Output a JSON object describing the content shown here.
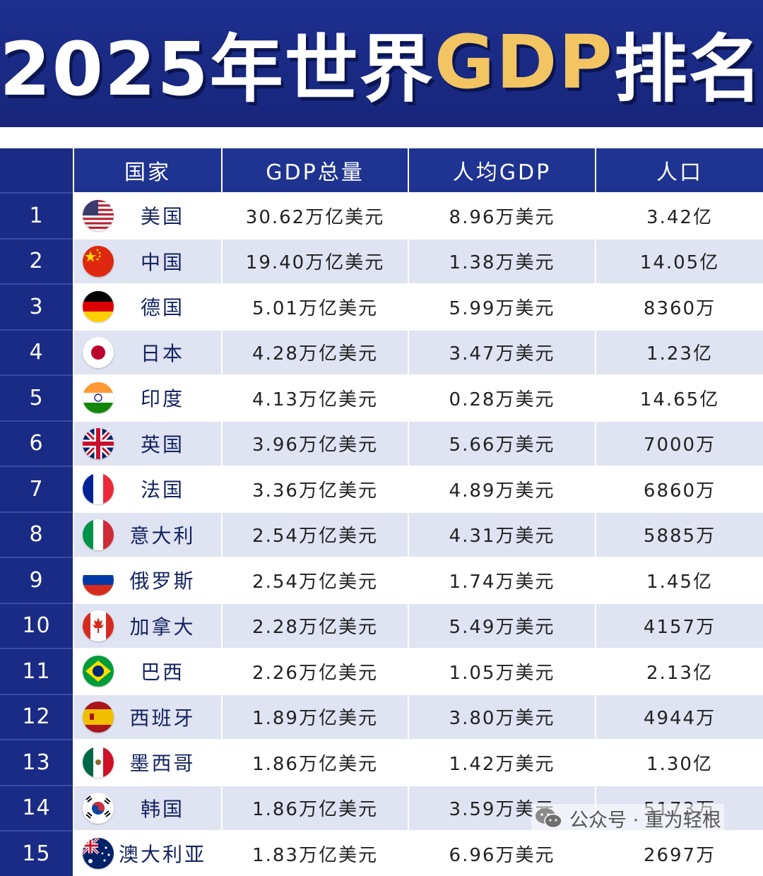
{
  "title": {
    "part1": "2025年世界",
    "highlight": "GDP",
    "part2": "排名"
  },
  "colors": {
    "header_bg": "#1f3391",
    "rank_bg": "#1a2b86",
    "stripe": "#dfe3f2",
    "title_highlight": "#f2c562"
  },
  "table": {
    "headers": [
      "",
      "国家",
      "GDP总量",
      "人均GDP",
      "人口"
    ],
    "rows": [
      {
        "rank": "1",
        "flag": "us-flag-icon",
        "country": "美国",
        "gdp": "30.62万亿美元",
        "per_capita": "8.96万美元",
        "population": "3.42亿"
      },
      {
        "rank": "2",
        "flag": "china-flag-icon",
        "country": "中国",
        "gdp": "19.40万亿美元",
        "per_capita": "1.38万美元",
        "population": "14.05亿"
      },
      {
        "rank": "3",
        "flag": "germany-flag-icon",
        "country": "德国",
        "gdp": "5.01万亿美元",
        "per_capita": "5.99万美元",
        "population": "8360万"
      },
      {
        "rank": "4",
        "flag": "japan-flag-icon",
        "country": "日本",
        "gdp": "4.28万亿美元",
        "per_capita": "3.47万美元",
        "population": "1.23亿"
      },
      {
        "rank": "5",
        "flag": "india-flag-icon",
        "country": "印度",
        "gdp": "4.13万亿美元",
        "per_capita": "0.28万美元",
        "population": "14.65亿"
      },
      {
        "rank": "6",
        "flag": "uk-flag-icon",
        "country": "英国",
        "gdp": "3.96万亿美元",
        "per_capita": "5.66万美元",
        "population": "7000万"
      },
      {
        "rank": "7",
        "flag": "france-flag-icon",
        "country": "法国",
        "gdp": "3.36万亿美元",
        "per_capita": "4.89万美元",
        "population": "6860万"
      },
      {
        "rank": "8",
        "flag": "italy-flag-icon",
        "country": "意大利",
        "gdp": "2.54万亿美元",
        "per_capita": "4.31万美元",
        "population": "5885万"
      },
      {
        "rank": "9",
        "flag": "russia-flag-icon",
        "country": "俄罗斯",
        "gdp": "2.54万亿美元",
        "per_capita": "1.74万美元",
        "population": "1.45亿"
      },
      {
        "rank": "10",
        "flag": "canada-flag-icon",
        "country": "加拿大",
        "gdp": "2.28万亿美元",
        "per_capita": "5.49万美元",
        "population": "4157万"
      },
      {
        "rank": "11",
        "flag": "brazil-flag-icon",
        "country": "巴西",
        "gdp": "2.26万亿美元",
        "per_capita": "1.05万美元",
        "population": "2.13亿"
      },
      {
        "rank": "12",
        "flag": "spain-flag-icon",
        "country": "西班牙",
        "gdp": "1.89万亿美元",
        "per_capita": "3.80万美元",
        "population": "4944万"
      },
      {
        "rank": "13",
        "flag": "mexico-flag-icon",
        "country": "墨西哥",
        "gdp": "1.86万亿美元",
        "per_capita": "1.42万美元",
        "population": "1.30亿"
      },
      {
        "rank": "14",
        "flag": "korea-flag-icon",
        "country": "韩国",
        "gdp": "1.86万亿美元",
        "per_capita": "3.59万美元",
        "population": "5173万"
      },
      {
        "rank": "15",
        "flag": "australia-flag-icon",
        "country": "澳大利亚",
        "gdp": "1.83万亿美元",
        "per_capita": "6.96万美元",
        "population": "2697万"
      }
    ]
  },
  "watermark": {
    "icon": "wechat-icon",
    "text": "公众号 · 重为轻根"
  }
}
